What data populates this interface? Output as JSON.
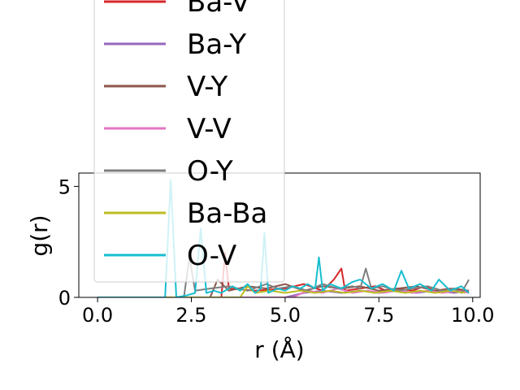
{
  "chart_data": {
    "type": "line",
    "title": "",
    "xlabel": "r (Å)",
    "ylabel": "g(r)",
    "xlim": [
      -0.5,
      10.2
    ],
    "ylim": [
      0,
      5.6
    ],
    "xticks": [
      0.0,
      2.5,
      5.0,
      7.5,
      10.0
    ],
    "xtick_labels": [
      "0.0",
      "2.5",
      "5.0",
      "7.5",
      "10.0"
    ],
    "yticks": [
      0,
      5
    ],
    "ytick_labels": [
      "0",
      "5"
    ],
    "grid": false,
    "legend_position": "upper-left, overflowing above the axes",
    "series": [
      {
        "name": "Ba-V",
        "color": "#d62728",
        "x": [
          0,
          3.3,
          3.4,
          3.5,
          4.2,
          5.0,
          5.5,
          6.0,
          6.3,
          6.5,
          6.6,
          7.0,
          7.4,
          7.7,
          8.0,
          8.4,
          8.7,
          9.0,
          9.4,
          9.8
        ],
        "y": [
          0,
          0,
          2.0,
          0.4,
          0.3,
          0.4,
          0.6,
          0.3,
          0.8,
          1.3,
          0.3,
          0.4,
          0.5,
          0.3,
          0.4,
          0.3,
          0.5,
          0.3,
          0.4,
          0.3
        ]
      },
      {
        "name": "Ba-Y",
        "color": "#9467bd",
        "x": [
          0,
          5.0,
          5.5,
          6.0,
          6.5,
          7.0,
          7.5,
          8.0,
          8.5,
          9.0,
          9.5,
          9.9
        ],
        "y": [
          0,
          0,
          0.2,
          0.3,
          0.2,
          0.3,
          0.2,
          0.3,
          0.2,
          0.3,
          0.2,
          0.3
        ]
      },
      {
        "name": "V-Y",
        "color": "#8c564b",
        "x": [
          0,
          3.0,
          3.2,
          3.5,
          4.0,
          4.5,
          5.0,
          5.5,
          6.0,
          6.5,
          7.0,
          7.5,
          8.0,
          8.5,
          9.0,
          9.5,
          9.9
        ],
        "y": [
          0,
          0,
          0.8,
          0.3,
          0.5,
          0.4,
          0.6,
          0.3,
          0.5,
          0.4,
          0.5,
          0.3,
          0.4,
          0.5,
          0.3,
          0.4,
          0.3
        ]
      },
      {
        "name": "V-V",
        "color": "#e377c2",
        "x": [
          0,
          5.2,
          5.6,
          6.0,
          6.4,
          6.8,
          7.2,
          7.6,
          8.0,
          8.4,
          8.8,
          9.2,
          9.6,
          9.9
        ],
        "y": [
          0,
          0,
          0.3,
          0.2,
          0.4,
          0.2,
          0.3,
          0.2,
          0.3,
          0.2,
          0.3,
          0.2,
          0.3,
          0.2
        ]
      },
      {
        "name": "O-Y",
        "color": "#7f7f7f",
        "x": [
          0,
          2.3,
          2.45,
          2.6,
          3.0,
          3.5,
          4.0,
          4.5,
          4.8,
          5.2,
          5.6,
          6.0,
          6.4,
          6.8,
          7.0,
          7.15,
          7.3,
          7.6,
          8.0,
          8.4,
          8.8,
          9.2,
          9.5,
          9.7,
          9.9
        ],
        "y": [
          0,
          0,
          1.8,
          0.3,
          0.4,
          0.5,
          0.3,
          0.6,
          0.4,
          0.5,
          0.3,
          0.6,
          0.4,
          0.5,
          0.4,
          1.3,
          0.4,
          0.5,
          0.3,
          0.4,
          0.5,
          0.3,
          0.4,
          0.2,
          0.8
        ]
      },
      {
        "name": "Ba-Ba",
        "color": "#bcbd22",
        "x": [
          0,
          3.8,
          4.0,
          4.2,
          4.6,
          5.0,
          5.4,
          5.8,
          6.2,
          6.6,
          7.0,
          7.4,
          7.8,
          8.2,
          8.6,
          9.0,
          9.4,
          9.8
        ],
        "y": [
          0,
          0,
          0.5,
          0.2,
          0.3,
          0.2,
          0.3,
          0.2,
          0.3,
          0.2,
          0.3,
          0.2,
          0.3,
          0.2,
          0.3,
          0.2,
          0.3,
          0.2
        ]
      },
      {
        "name": "O-V",
        "color": "#17becf",
        "x": [
          0,
          1.8,
          1.95,
          2.1,
          2.4,
          2.6,
          2.75,
          2.9,
          3.1,
          3.3,
          3.6,
          3.8,
          4.0,
          4.2,
          4.35,
          4.45,
          4.55,
          4.8,
          5.0,
          5.2,
          5.4,
          5.6,
          5.8,
          5.9,
          6.0,
          6.2,
          6.5,
          6.8,
          7.0,
          7.3,
          7.6,
          7.9,
          8.1,
          8.3,
          8.6,
          8.9,
          9.1,
          9.4,
          9.7,
          9.9
        ],
        "y": [
          0,
          0,
          5.3,
          0,
          0.1,
          0.2,
          3.1,
          0.2,
          0.3,
          0.2,
          0.5,
          0.3,
          0.6,
          0.2,
          0.4,
          2.9,
          0.2,
          0.4,
          0.3,
          0.5,
          0.4,
          0.6,
          0.4,
          1.8,
          0.3,
          0.6,
          0.4,
          0.7,
          0.8,
          0.4,
          0.6,
          0.3,
          1.2,
          0.4,
          0.6,
          0.3,
          0.8,
          0.3,
          0.5,
          0.2
        ]
      }
    ]
  }
}
